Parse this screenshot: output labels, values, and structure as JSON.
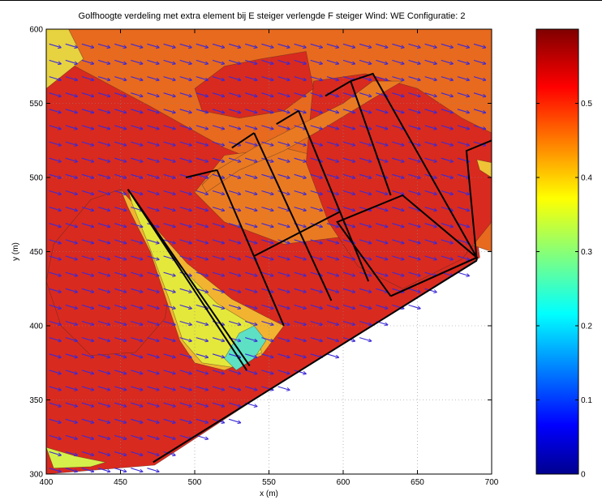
{
  "chart_data": {
    "type": "contour",
    "title": "Golfhoogte verdeling  met extra element bij E steiger verlengde F steiger Wind: WE Configuratie: 2",
    "xlabel": "x (m)",
    "ylabel": "y (m)",
    "xlim": [
      400,
      700
    ],
    "ylim": [
      300,
      600
    ],
    "xticks": [
      400,
      450,
      500,
      550,
      600,
      650,
      700
    ],
    "yticks": [
      300,
      350,
      400,
      450,
      500,
      550,
      600
    ],
    "grid": "dotted",
    "colormap": "jet",
    "colorbar": {
      "range": [
        0,
        0.6
      ],
      "ticks": [
        0,
        0.1,
        0.2,
        0.3,
        0.4,
        0.5
      ]
    },
    "wind_arrows": {
      "direction": "west-to-east, slightly downward",
      "color": "#3a2ad8"
    },
    "regions": [
      {
        "level": 0.52,
        "color": "#d92a1f",
        "polygon": [
          [
            400,
            300
          ],
          [
            400,
            600
          ],
          [
            700,
            600
          ],
          [
            700,
            518
          ],
          [
            683,
            518
          ],
          [
            692,
            446
          ],
          [
            540,
            350
          ],
          [
            473,
            306
          ]
        ]
      },
      {
        "level": 0.47,
        "color": "#e86a1e",
        "polygon": [
          [
            400,
            600
          ],
          [
            410,
            580
          ],
          [
            470,
            548
          ],
          [
            520,
            520
          ],
          [
            570,
            500
          ],
          [
            640,
            470
          ],
          [
            700,
            450
          ],
          [
            700,
            600
          ]
        ]
      },
      {
        "level": 0.46,
        "color": "#ea7a22",
        "polygon": [
          [
            500,
            490
          ],
          [
            520,
            470
          ],
          [
            560,
            455
          ],
          [
            600,
            460
          ],
          [
            620,
            480
          ],
          [
            600,
            510
          ],
          [
            560,
            520
          ],
          [
            520,
            515
          ]
        ]
      },
      {
        "level": 0.52,
        "color": "#d92a1f",
        "polygon": [
          [
            405,
            455
          ],
          [
            430,
            485
          ],
          [
            450,
            492
          ],
          [
            470,
            470
          ],
          [
            485,
            440
          ],
          [
            480,
            405
          ],
          [
            460,
            382
          ],
          [
            430,
            380
          ],
          [
            410,
            400
          ],
          [
            400,
            430
          ]
        ]
      },
      {
        "level": 0.52,
        "color": "#d92a1f",
        "polygon": [
          [
            580,
            565
          ],
          [
            615,
            570
          ],
          [
            650,
            560
          ],
          [
            680,
            540
          ],
          [
            700,
            530
          ],
          [
            700,
            470
          ],
          [
            680,
            445
          ],
          [
            640,
            425
          ],
          [
            610,
            440
          ],
          [
            590,
            470
          ],
          [
            575,
            510
          ]
        ]
      },
      {
        "level": 0.52,
        "color": "#d92a1f",
        "polygon": [
          [
            500,
            560
          ],
          [
            520,
            575
          ],
          [
            545,
            580
          ],
          [
            575,
            585
          ],
          [
            580,
            560
          ],
          [
            560,
            545
          ],
          [
            530,
            540
          ],
          [
            505,
            545
          ]
        ]
      },
      {
        "level": 0.42,
        "color": "#f2b430",
        "polygon": [
          [
            450,
            492
          ],
          [
            470,
            470
          ],
          [
            495,
            442
          ],
          [
            525,
            418
          ],
          [
            550,
            405
          ],
          [
            560,
            400
          ],
          [
            545,
            380
          ],
          [
            520,
            370
          ],
          [
            500,
            375
          ],
          [
            490,
            390
          ],
          [
            480,
            420
          ],
          [
            470,
            450
          ],
          [
            455,
            480
          ]
        ]
      },
      {
        "level": 0.36,
        "color": "#e4e83a",
        "polygon": [
          [
            455,
            492
          ],
          [
            470,
            470
          ],
          [
            490,
            440
          ],
          [
            515,
            415
          ],
          [
            540,
            400
          ],
          [
            545,
            382
          ],
          [
            525,
            372
          ],
          [
            505,
            375
          ],
          [
            492,
            390
          ],
          [
            482,
            420
          ],
          [
            470,
            452
          ],
          [
            458,
            482
          ]
        ]
      },
      {
        "level": 0.26,
        "color": "#5ee0c4",
        "polygon": [
          [
            520,
            378
          ],
          [
            530,
            395
          ],
          [
            540,
            400
          ],
          [
            548,
            390
          ],
          [
            540,
            378
          ],
          [
            528,
            370
          ]
        ]
      },
      {
        "level": 0.4,
        "color": "#e7d240",
        "polygon": [
          [
            400,
            600
          ],
          [
            400,
            560
          ],
          [
            425,
            580
          ],
          [
            415,
            600
          ]
        ]
      },
      {
        "level": 0.36,
        "color": "#d5f04a",
        "polygon": [
          [
            400,
            318
          ],
          [
            420,
            312
          ],
          [
            440,
            308
          ],
          [
            430,
            305
          ],
          [
            405,
            304
          ]
        ]
      },
      {
        "level": 0.4,
        "color": "#f0c236",
        "polygon": [
          [
            690,
            512
          ],
          [
            700,
            510
          ],
          [
            700,
            500
          ],
          [
            692,
            505
          ]
        ]
      },
      {
        "level": 0.46,
        "color": "#ea7a22",
        "polygon": [
          [
            508,
            490
          ],
          [
            530,
            505
          ],
          [
            560,
            518
          ],
          [
            590,
            535
          ],
          [
            618,
            552
          ],
          [
            640,
            565
          ],
          [
            620,
            565
          ],
          [
            600,
            550
          ],
          [
            570,
            535
          ],
          [
            540,
            520
          ],
          [
            515,
            505
          ],
          [
            505,
            495
          ]
        ]
      }
    ],
    "structures": [
      {
        "name": "pier-west",
        "points": [
          [
            455,
            492
          ],
          [
            535,
            370
          ]
        ]
      },
      {
        "name": "pier-front",
        "points": [
          [
            455,
            492
          ],
          [
            537,
            373
          ]
        ]
      },
      {
        "name": "e-steiger-1",
        "points": [
          [
            515,
            505
          ],
          [
            560,
            400
          ]
        ]
      },
      {
        "name": "e-steiger-2",
        "points": [
          [
            540,
            530
          ],
          [
            592,
            417
          ]
        ]
      },
      {
        "name": "e-steiger-3",
        "points": [
          [
            570,
            545
          ],
          [
            617,
            430
          ]
        ]
      },
      {
        "name": "f-steiger",
        "points": [
          [
            605,
            565
          ],
          [
            632,
            488
          ]
        ]
      },
      {
        "name": "cross-walk",
        "points": [
          [
            540,
            447
          ],
          [
            598,
            477
          ]
        ]
      },
      {
        "name": "quay",
        "points": [
          [
            472,
            308
          ],
          [
            690,
            444
          ]
        ]
      },
      {
        "name": "quay-return",
        "points": [
          [
            690,
            444
          ],
          [
            683,
            518
          ],
          [
            700,
            525
          ]
        ]
      },
      {
        "name": "box-lower",
        "points": [
          [
            632,
            420
          ],
          [
            690,
            446
          ],
          [
            640,
            488
          ],
          [
            596,
            470
          ],
          [
            632,
            420
          ]
        ]
      },
      {
        "name": "box-upper",
        "points": [
          [
            605,
            565
          ],
          [
            620,
            570
          ],
          [
            690,
            446
          ],
          [
            632,
            420
          ]
        ]
      },
      {
        "name": "cap-1",
        "points": [
          [
            494,
            500
          ],
          [
            515,
            505
          ]
        ]
      },
      {
        "name": "cap-2",
        "points": [
          [
            525,
            520
          ],
          [
            540,
            530
          ]
        ]
      },
      {
        "name": "cap-3",
        "points": [
          [
            555,
            536
          ],
          [
            570,
            545
          ]
        ]
      },
      {
        "name": "cap-4",
        "points": [
          [
            588,
            555
          ],
          [
            605,
            565
          ]
        ]
      }
    ]
  }
}
